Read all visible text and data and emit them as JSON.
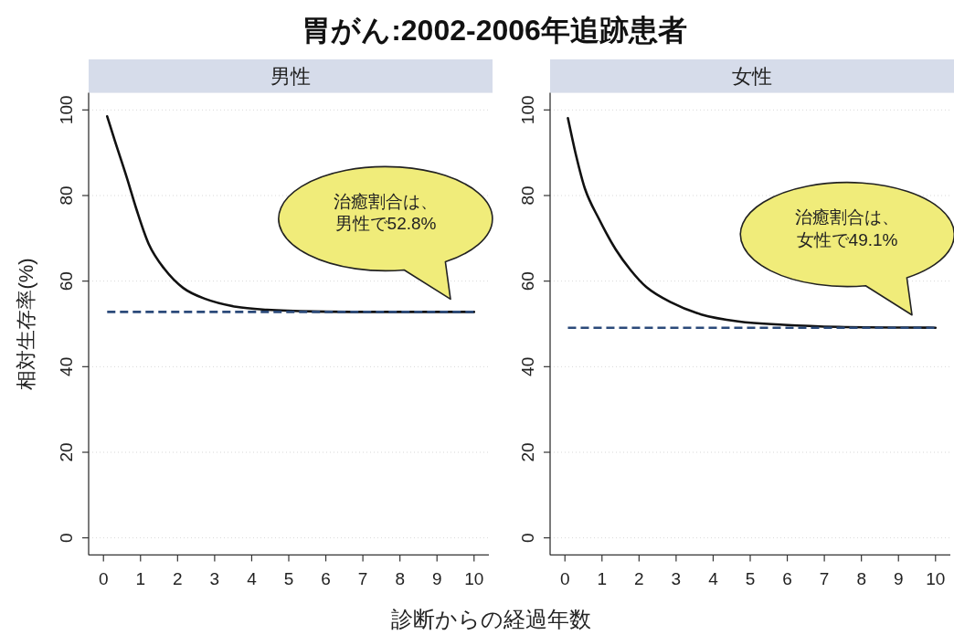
{
  "chart_data": [
    {
      "type": "line",
      "title": "胃がん:2002-2006年追跡患者",
      "subtitle": "男性",
      "xlabel": "診断からの経過年数",
      "ylabel": "相対生存率(%)",
      "x": [
        0.1,
        0.3,
        0.63,
        0.89,
        1.22,
        1.64,
        2.15,
        2.73,
        3.58,
        4.41,
        5.68,
        7.5,
        10
      ],
      "values": [
        98.5,
        93,
        84.2,
        76.8,
        68.7,
        62.9,
        58.4,
        55.9,
        54,
        53.3,
        52.9,
        52.8,
        52.8
      ],
      "color": "#111111",
      "xlim": [
        -0.4,
        10.4
      ],
      "ylim": [
        -4,
        104
      ],
      "xticks": [
        0,
        1,
        2,
        3,
        4,
        5,
        6,
        7,
        8,
        9,
        10
      ],
      "yticks": [
        0,
        20,
        40,
        60,
        80,
        100
      ],
      "grid": "y",
      "ref_lines": [
        {
          "axis": "y",
          "value": 52.8,
          "color": "#2b4a7a",
          "line_style": "dashed"
        }
      ],
      "annotations": [
        "治癒割合は、男性で52.8%"
      ]
    },
    {
      "type": "line",
      "subtitle": "女性",
      "x": [
        0.08,
        0.3,
        0.54,
        0.92,
        1.37,
        1.78,
        2.2,
        2.85,
        3.68,
        4.67,
        5.9,
        7.4,
        10
      ],
      "values": [
        98.1,
        89.4,
        81.6,
        74.5,
        67.4,
        62.5,
        58.6,
        55.1,
        52.2,
        50.6,
        49.8,
        49.3,
        49.1
      ],
      "color": "#111111",
      "xlim": [
        -0.4,
        10.4
      ],
      "ylim": [
        -4,
        104
      ],
      "xticks": [
        0,
        1,
        2,
        3,
        4,
        5,
        6,
        7,
        8,
        9,
        10
      ],
      "yticks": [
        0,
        20,
        40,
        60,
        80,
        100
      ],
      "grid": "y",
      "ref_lines": [
        {
          "axis": "y",
          "value": 49.1,
          "color": "#2b4a7a",
          "line_style": "dashed"
        }
      ],
      "annotations": [
        "治癒割合は、女性で49.1%"
      ]
    }
  ]
}
